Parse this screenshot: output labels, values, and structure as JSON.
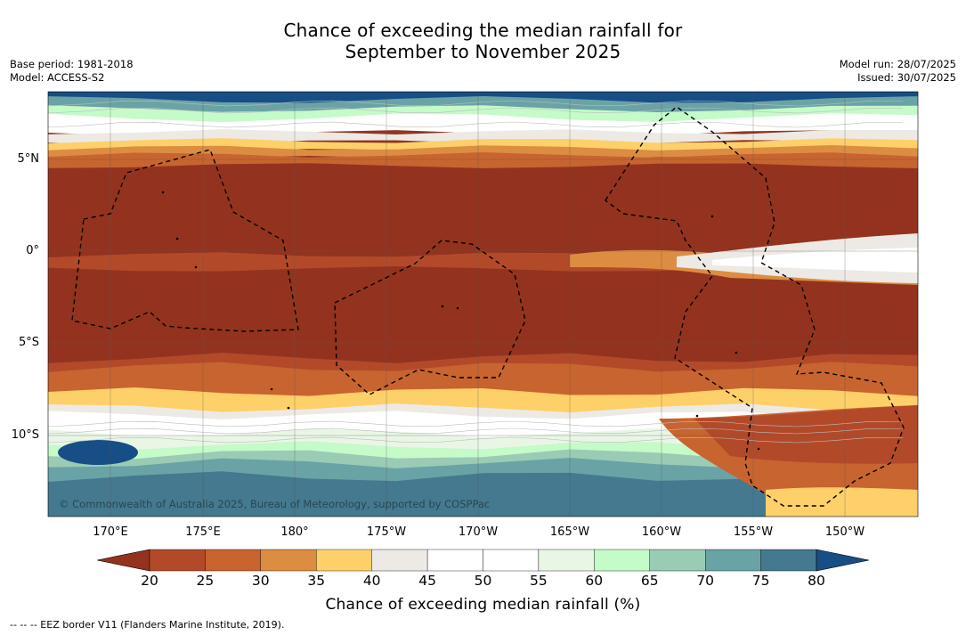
{
  "title": {
    "line1": "Chance of exceeding the median rainfall for",
    "line2": "September to November 2025"
  },
  "meta": {
    "base_period": "Base period: 1981-2018",
    "model": "Model: ACCESS-S2",
    "model_run": "Model run: 28/07/2025",
    "issued": "Issued: 30/07/2025"
  },
  "map": {
    "latitude_labels": [
      "5°N",
      "0°",
      "5°S",
      "10°S"
    ],
    "longitude_labels": [
      "170°E",
      "175°E",
      "180°",
      "175°W",
      "170°W",
      "165°W",
      "160°W",
      "155°W",
      "150°W"
    ],
    "copyright": "© Commonwealth of Australia 2025, Bureau of Meteorology, supported by COSPPac",
    "border_color": "#000000",
    "gridline_color": "#555555"
  },
  "colorbar": {
    "label": "Chance of exceeding median rainfall (%)",
    "ticks": [
      "20",
      "25",
      "30",
      "35",
      "40",
      "45",
      "50",
      "55",
      "60",
      "65",
      "70",
      "75",
      "80"
    ],
    "colors": [
      "#93331f",
      "#b24a2a",
      "#c8642f",
      "#dc8d42",
      "#fdd06a",
      "#ede9e5",
      "#ffffff",
      "#ffffff",
      "#e9f6e6",
      "#c5fac9",
      "#9acbb5",
      "#6aa3a6",
      "#44798f",
      "#174e85"
    ]
  },
  "footnote": "--  --  -- EEZ border V11 (Flanders Marine Institute, 2019)."
}
